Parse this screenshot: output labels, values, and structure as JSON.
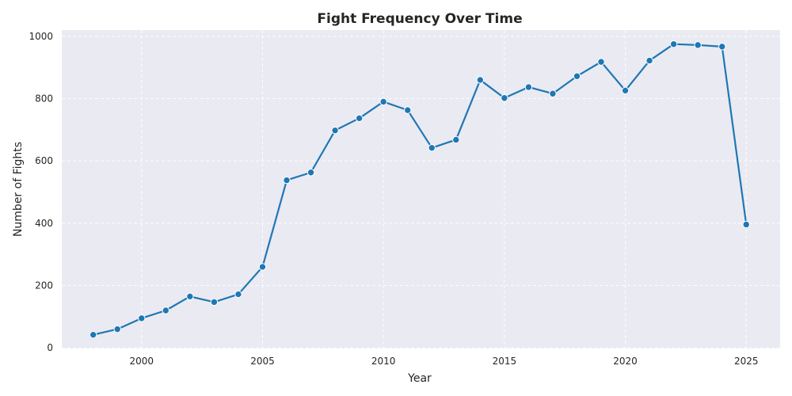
{
  "chart_data": {
    "type": "line",
    "title": "Fight Frequency Over Time",
    "xlabel": "Year",
    "ylabel": "Number of Fights",
    "xlim": [
      1996.7,
      2026.4
    ],
    "ylim": [
      -2,
      1020
    ],
    "xticks": [
      2000,
      2005,
      2010,
      2015,
      2020,
      2025
    ],
    "yticks": [
      0,
      200,
      400,
      600,
      800,
      1000
    ],
    "grid": true,
    "legend": "none",
    "color": "#1f77b4",
    "series": [
      {
        "x": [
          1998,
          1999,
          2000,
          2001,
          2002,
          2003,
          2004,
          2005,
          2006,
          2007,
          2008,
          2009,
          2010,
          2011,
          2012,
          2013,
          2014,
          2015,
          2016,
          2017,
          2018,
          2019,
          2020,
          2021,
          2022,
          2023,
          2024,
          2025
        ],
        "y": [
          42,
          60,
          95,
          120,
          165,
          147,
          172,
          260,
          538,
          563,
          698,
          737,
          790,
          763,
          642,
          668,
          860,
          802,
          837,
          816,
          872,
          918,
          826,
          922,
          975,
          972,
          967,
          396
        ]
      }
    ]
  }
}
